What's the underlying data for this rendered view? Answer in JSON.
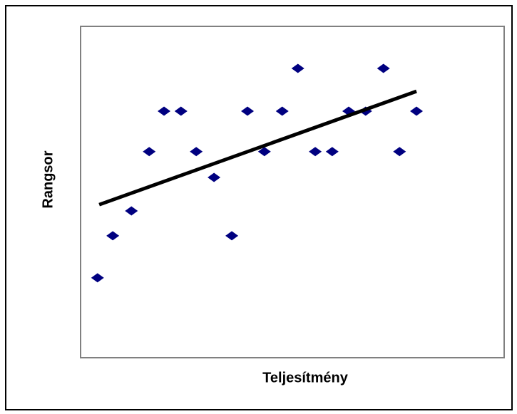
{
  "chart_data": {
    "type": "scatter",
    "x_label": "Teljesítmény",
    "y_label": "Rangsor",
    "xlim": [
      0,
      100
    ],
    "ylim": [
      0,
      100
    ],
    "color": "#000080",
    "x": [
      4.0,
      7.6,
      12.0,
      16.2,
      19.7,
      23.7,
      27.3,
      31.5,
      35.7,
      39.4,
      43.4,
      47.6,
      51.3,
      55.4,
      59.4,
      63.3,
      67.3,
      71.5,
      75.3,
      79.3
    ],
    "values": [
      24.1,
      36.8,
      44.3,
      62.2,
      74.4,
      74.4,
      62.2,
      54.4,
      36.8,
      74.4,
      62.2,
      74.4,
      87.3,
      62.2,
      62.2,
      74.4,
      74.4,
      87.3,
      62.2,
      74.4
    ],
    "trendline": {
      "color": "#000000",
      "x": [
        4.4,
        79.3
      ],
      "values": [
        46.2,
        80.4
      ]
    }
  }
}
